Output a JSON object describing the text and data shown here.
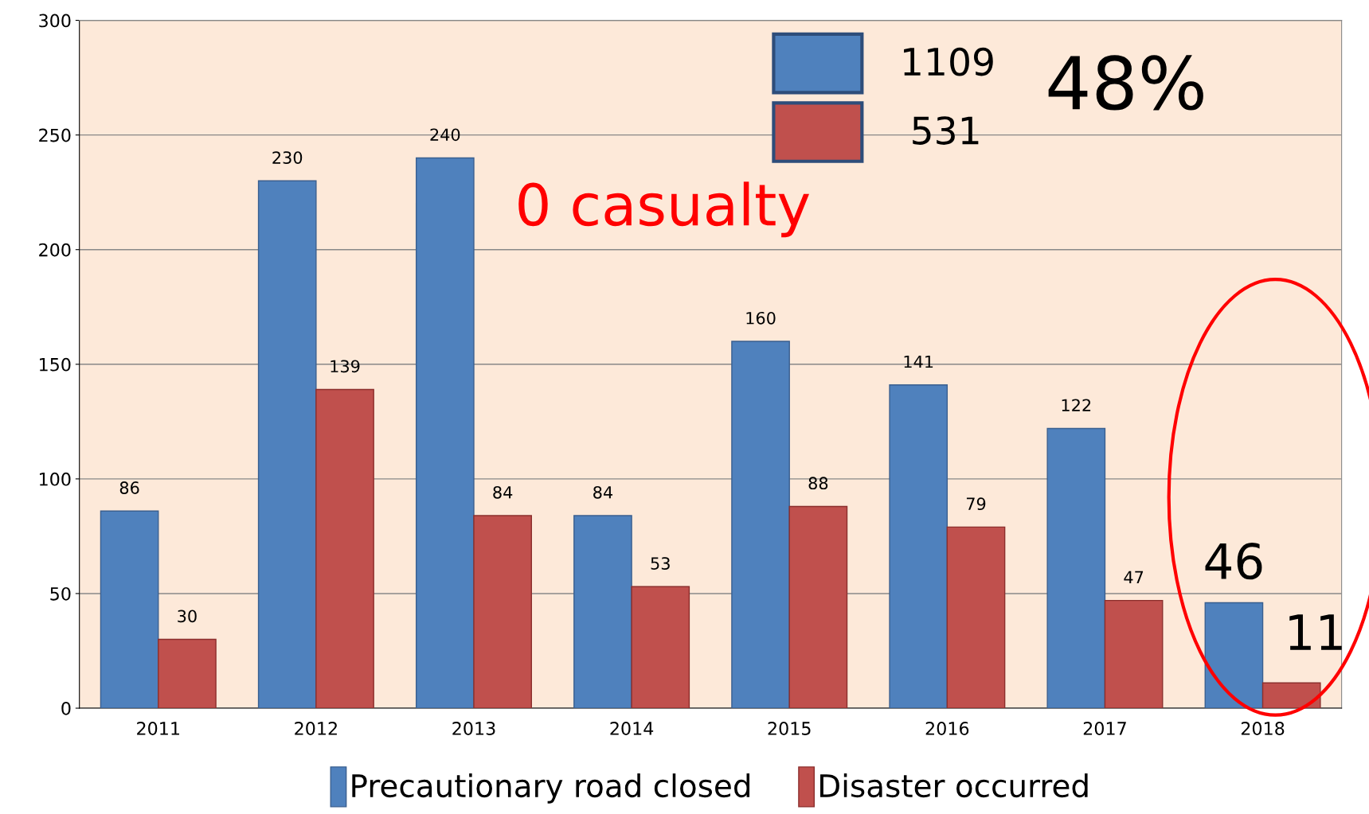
{
  "chart_data": {
    "type": "bar",
    "categories": [
      "2011",
      "2012",
      "2013",
      "2014",
      "2015",
      "2016",
      "2017",
      "2018"
    ],
    "series": [
      {
        "name": "Precautionary road closed",
        "color": "#4f81bd",
        "values": [
          86,
          230,
          240,
          84,
          160,
          141,
          122,
          46
        ]
      },
      {
        "name": "Disaster occurred",
        "color": "#c0504d",
        "values": [
          30,
          139,
          84,
          53,
          88,
          79,
          47,
          11
        ]
      }
    ],
    "ylim": [
      0,
      300
    ],
    "yticks": [
      0,
      50,
      100,
      150,
      200,
      250,
      300
    ],
    "grid": "y",
    "legend": "bottom",
    "data_labels": true,
    "annotations": [
      "1109",
      "531",
      "48%",
      "0 casualty"
    ]
  }
}
